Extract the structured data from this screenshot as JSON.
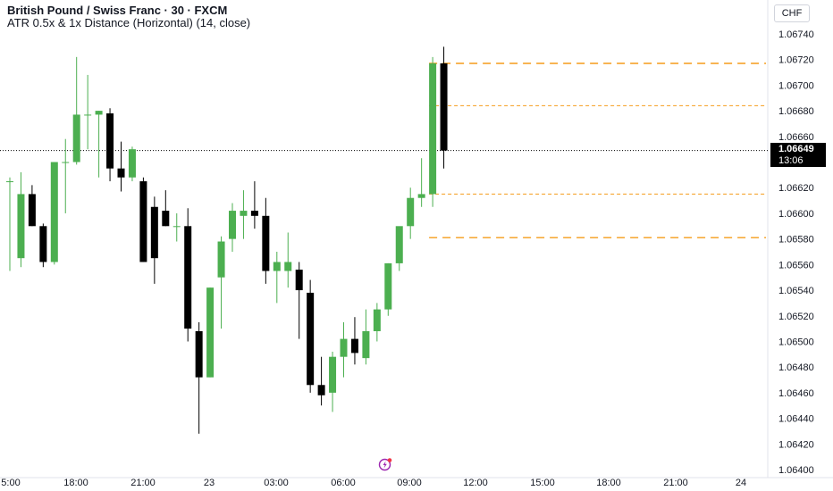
{
  "header": {
    "symbol_line": "British Pound / Swiss Franc · 30 · FXCM",
    "indicator_line": "ATR 0.5x & 1x Distance (Horizontal) (14, close)"
  },
  "currency_label": "CHF",
  "price_badge": {
    "price": "1.06649",
    "countdown": "13:06"
  },
  "colors": {
    "up": "#4caf50",
    "down": "#000000",
    "atr_line": "#f59c1a",
    "current_price_line": "#000000"
  },
  "chart_data": {
    "type": "candlestick",
    "ylim": [
      1.064,
      1.0675
    ],
    "y_ticks": [
      "1.06400",
      "1.06420",
      "1.06440",
      "1.06460",
      "1.06480",
      "1.06500",
      "1.06520",
      "1.06540",
      "1.06560",
      "1.06580",
      "1.06600",
      "1.06620",
      "1.06640",
      "1.06660",
      "1.06680",
      "1.06700",
      "1.06720",
      "1.06740"
    ],
    "x_tick_labels": [
      "5:00",
      "18:00",
      "21:00",
      "23",
      "03:00",
      "06:00",
      "09:00",
      "12:00",
      "15:00",
      "18:00",
      "21:00",
      "24"
    ],
    "current_price": 1.06649,
    "atr_levels": [
      1.06717,
      1.06684,
      1.06615,
      1.06581
    ],
    "candles": [
      {
        "o": 1.06625,
        "h": 1.06628,
        "l": 1.06555,
        "c": 1.06625
      },
      {
        "o": 1.06565,
        "h": 1.06632,
        "l": 1.06558,
        "c": 1.06615
      },
      {
        "o": 1.06615,
        "h": 1.06622,
        "l": 1.0659,
        "c": 1.0659
      },
      {
        "o": 1.0659,
        "h": 1.06592,
        "l": 1.06558,
        "c": 1.06562
      },
      {
        "o": 1.06562,
        "h": 1.0664,
        "l": 1.0656,
        "c": 1.0664
      },
      {
        "o": 1.0664,
        "h": 1.06658,
        "l": 1.066,
        "c": 1.0664
      },
      {
        "o": 1.0664,
        "h": 1.06722,
        "l": 1.06638,
        "c": 1.06677
      },
      {
        "o": 1.06677,
        "h": 1.06708,
        "l": 1.0665,
        "c": 1.06677
      },
      {
        "o": 1.06677,
        "h": 1.0668,
        "l": 1.06628,
        "c": 1.0668
      },
      {
        "o": 1.06678,
        "h": 1.06682,
        "l": 1.06625,
        "c": 1.06635
      },
      {
        "o": 1.06635,
        "h": 1.06656,
        "l": 1.06617,
        "c": 1.06628
      },
      {
        "o": 1.06628,
        "h": 1.06652,
        "l": 1.06625,
        "c": 1.0665
      },
      {
        "o": 1.06625,
        "h": 1.06628,
        "l": 1.06562,
        "c": 1.06562
      },
      {
        "o": 1.06605,
        "h": 1.06613,
        "l": 1.06545,
        "c": 1.06565
      },
      {
        "o": 1.06602,
        "h": 1.06618,
        "l": 1.0659,
        "c": 1.0659
      },
      {
        "o": 1.0659,
        "h": 1.066,
        "l": 1.06578,
        "c": 1.0659
      },
      {
        "o": 1.0659,
        "h": 1.06604,
        "l": 1.065,
        "c": 1.0651
      },
      {
        "o": 1.06508,
        "h": 1.06515,
        "l": 1.06428,
        "c": 1.06472
      },
      {
        "o": 1.06472,
        "h": 1.06542,
        "l": 1.06472,
        "c": 1.06542
      },
      {
        "o": 1.0655,
        "h": 1.06582,
        "l": 1.0651,
        "c": 1.06578
      },
      {
        "o": 1.0658,
        "h": 1.06608,
        "l": 1.0657,
        "c": 1.06602
      },
      {
        "o": 1.06598,
        "h": 1.06618,
        "l": 1.0658,
        "c": 1.06602
      },
      {
        "o": 1.06602,
        "h": 1.06625,
        "l": 1.06588,
        "c": 1.06598
      },
      {
        "o": 1.06598,
        "h": 1.06612,
        "l": 1.06545,
        "c": 1.06555
      },
      {
        "o": 1.06555,
        "h": 1.0657,
        "l": 1.0653,
        "c": 1.06562
      },
      {
        "o": 1.06555,
        "h": 1.06585,
        "l": 1.06542,
        "c": 1.06562
      },
      {
        "o": 1.06556,
        "h": 1.06562,
        "l": 1.06502,
        "c": 1.0654
      },
      {
        "o": 1.06538,
        "h": 1.06548,
        "l": 1.0646,
        "c": 1.06466
      },
      {
        "o": 1.06466,
        "h": 1.06488,
        "l": 1.0645,
        "c": 1.06458
      },
      {
        "o": 1.0646,
        "h": 1.06492,
        "l": 1.06445,
        "c": 1.06488
      },
      {
        "o": 1.06488,
        "h": 1.06515,
        "l": 1.06472,
        "c": 1.06502
      },
      {
        "o": 1.06502,
        "h": 1.06519,
        "l": 1.06482,
        "c": 1.06491
      },
      {
        "o": 1.06487,
        "h": 1.06525,
        "l": 1.06482,
        "c": 1.06508
      },
      {
        "o": 1.06508,
        "h": 1.0653,
        "l": 1.065,
        "c": 1.06525
      },
      {
        "o": 1.06525,
        "h": 1.06561,
        "l": 1.0652,
        "c": 1.06561
      },
      {
        "o": 1.06561,
        "h": 1.06588,
        "l": 1.06555,
        "c": 1.0659
      },
      {
        "o": 1.0659,
        "h": 1.0662,
        "l": 1.0658,
        "c": 1.06612
      },
      {
        "o": 1.06612,
        "h": 1.06643,
        "l": 1.06605,
        "c": 1.06615
      },
      {
        "o": 1.06615,
        "h": 1.06722,
        "l": 1.06605,
        "c": 1.06717
      },
      {
        "o": 1.06717,
        "h": 1.0673,
        "l": 1.06635,
        "c": 1.06649
      }
    ]
  }
}
